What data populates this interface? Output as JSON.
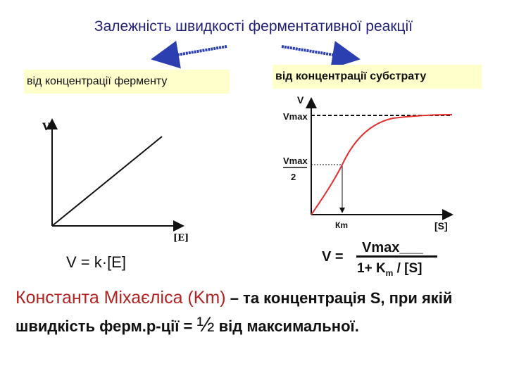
{
  "title": "Залежність швидкості ферментативної реакції",
  "left": {
    "box_label": "від концентрації ферменту",
    "y_axis_label": "V",
    "x_axis_label": "[E]",
    "formula": "V = k·[E]"
  },
  "right": {
    "box_label": "від концентрації субстрату",
    "y_axis_label": "V",
    "vmax_label": "Vmax",
    "half_vmax_num": "Vmax",
    "half_vmax_den": "2",
    "km_label": "Кm",
    "x_axis_label": "[S]",
    "formula_v": "V =",
    "formula_num": "Vmax___",
    "formula_den_a": "1+ K",
    "formula_den_sub": "m",
    "formula_den_b": " / [S]"
  },
  "definition": {
    "highlight": "Константа Міхаєліса (Km)",
    "dash": " – ",
    "text_a": "та концентрація S, при якій швидкість ферм.р-ції = ",
    "half": "½",
    "text_b": " від максимальної."
  },
  "colors": {
    "title": "#1f1f7a",
    "arrow": "#2b3fb0",
    "box": "#ffffcc",
    "curve": "#e03030",
    "highlight": "#b22222"
  }
}
